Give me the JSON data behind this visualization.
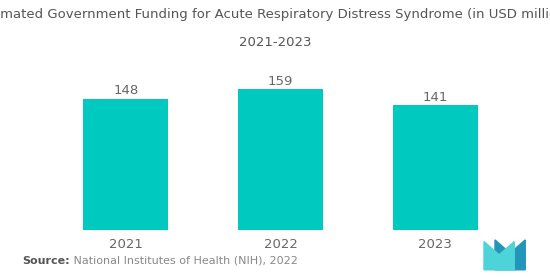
{
  "title_line1": "Estimated Government Funding for Acute Respiratory Distress Syndrome (in USD million),",
  "title_line2": "2021-2023",
  "categories": [
    "2021",
    "2022",
    "2023"
  ],
  "values": [
    148,
    159,
    141
  ],
  "bar_color": "#00C9C0",
  "background_color": "#ffffff",
  "value_labels": [
    "148",
    "159",
    "141"
  ],
  "source_bold": "Source:",
  "source_text": "   National Institutes of Health (NIH), 2022",
  "title_fontsize": 9.5,
  "label_fontsize": 9.5,
  "source_fontsize": 8,
  "tick_fontsize": 9.5,
  "ylim": [
    0,
    185
  ],
  "logo_color1": "#2196b8",
  "logo_color2": "#4dd4d8"
}
